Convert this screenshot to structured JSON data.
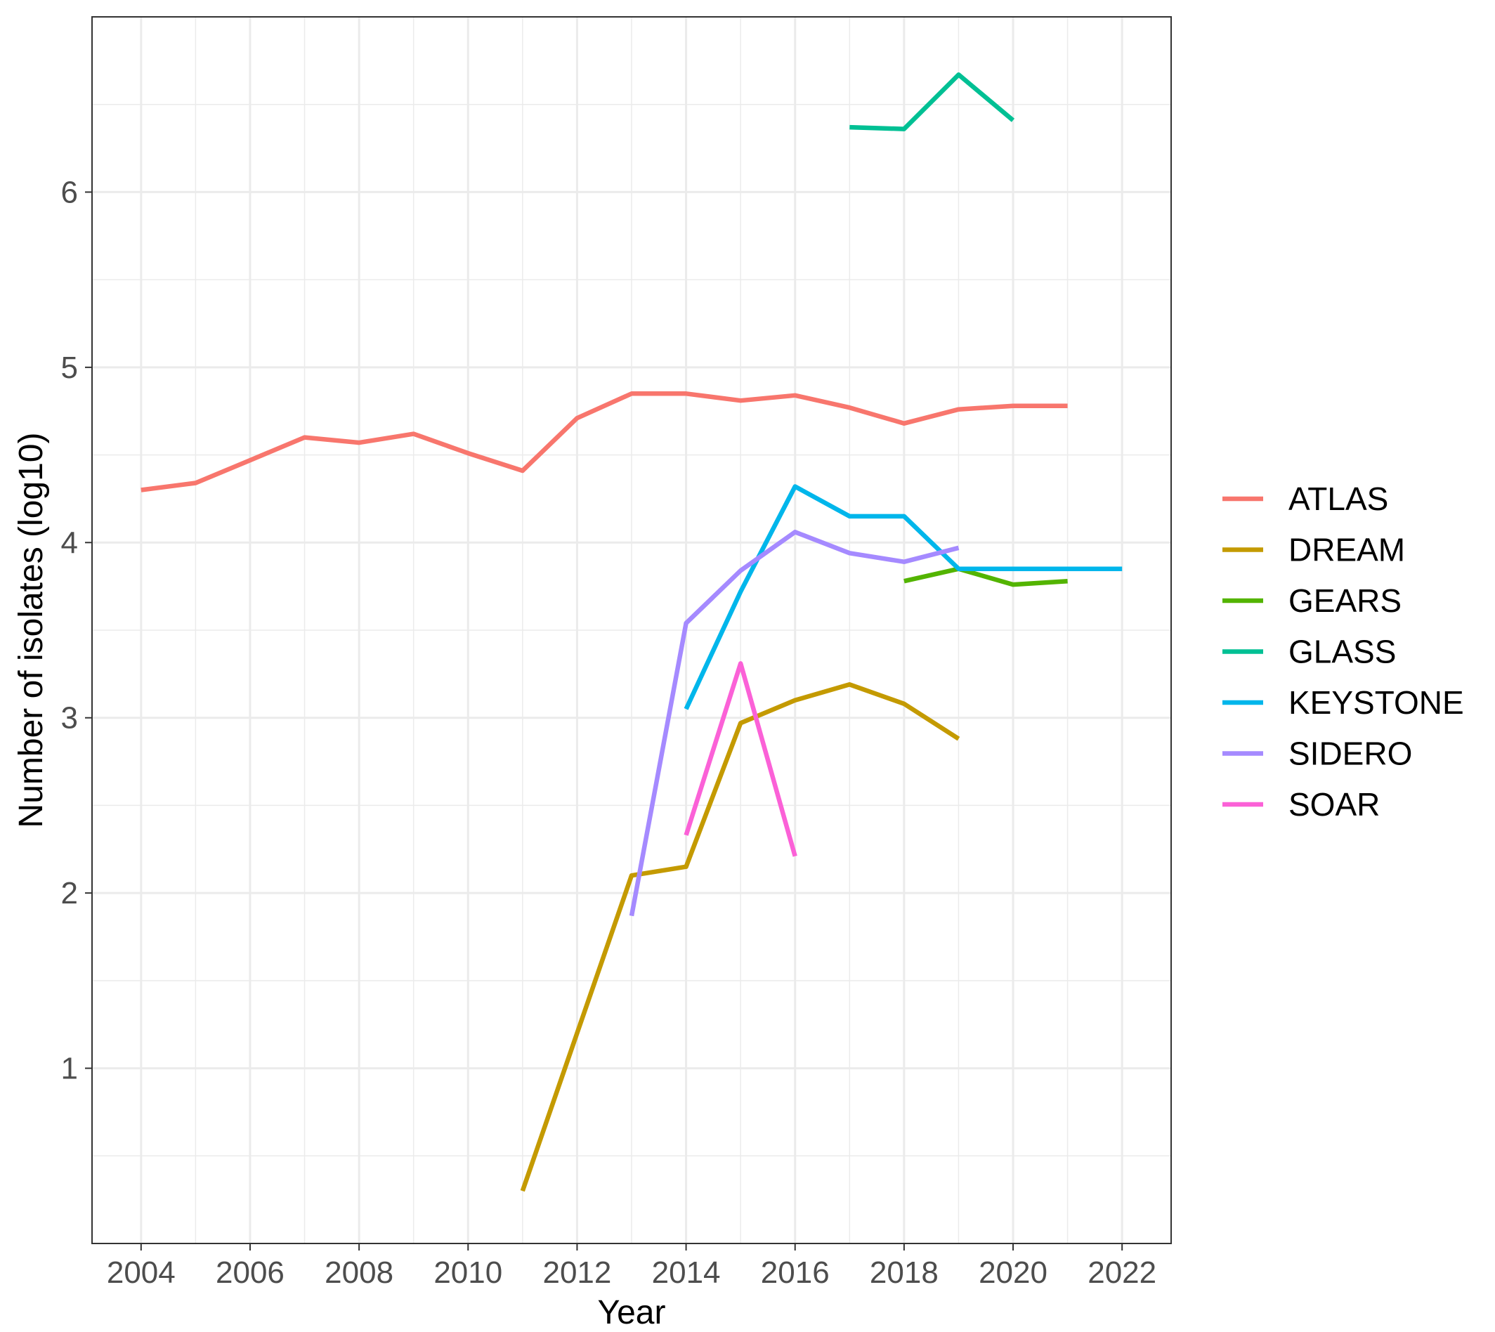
{
  "chart_data": {
    "type": "line",
    "title": "",
    "xlabel": "Year",
    "ylabel": "Number of isolates (log10)",
    "xlim": [
      2003.1,
      2022.9
    ],
    "ylim": [
      -0.0,
      7.0
    ],
    "x_ticks": [
      2004,
      2006,
      2008,
      2010,
      2012,
      2014,
      2016,
      2018,
      2020,
      2022
    ],
    "y_ticks": [
      1,
      2,
      3,
      4,
      5,
      6
    ],
    "grid": true,
    "legend_position": "right",
    "series": [
      {
        "name": "ATLAS",
        "color": "#F8766D",
        "points": [
          [
            2004,
            4.3
          ],
          [
            2005,
            4.34
          ],
          [
            2006,
            4.47
          ],
          [
            2007,
            4.6
          ],
          [
            2008,
            4.57
          ],
          [
            2009,
            4.62
          ],
          [
            2010,
            4.51
          ],
          [
            2011,
            4.41
          ],
          [
            2012,
            4.71
          ],
          [
            2013,
            4.85
          ],
          [
            2014,
            4.85
          ],
          [
            2015,
            4.81
          ],
          [
            2016,
            4.84
          ],
          [
            2017,
            4.77
          ],
          [
            2018,
            4.68
          ],
          [
            2019,
            4.76
          ],
          [
            2020,
            4.78
          ],
          [
            2021,
            4.78
          ]
        ]
      },
      {
        "name": "DREAM",
        "color": "#C49A00",
        "points": [
          [
            2011,
            0.3
          ],
          [
            2012,
            1.2
          ],
          [
            2013,
            2.1
          ],
          [
            2014,
            2.15
          ],
          [
            2015,
            2.97
          ],
          [
            2016,
            3.1
          ],
          [
            2017,
            3.19
          ],
          [
            2018,
            3.08
          ],
          [
            2019,
            2.88
          ]
        ]
      },
      {
        "name": "GEARS",
        "color": "#53B400",
        "points": [
          [
            2018,
            3.78
          ],
          [
            2019,
            3.85
          ],
          [
            2020,
            3.76
          ],
          [
            2021,
            3.78
          ]
        ]
      },
      {
        "name": "GLASS",
        "color": "#00C094",
        "points": [
          [
            2017,
            6.37
          ],
          [
            2018,
            6.36
          ],
          [
            2019,
            6.67
          ],
          [
            2020,
            6.41
          ]
        ]
      },
      {
        "name": "KEYSTONE",
        "color": "#00B6EB",
        "points": [
          [
            2014,
            3.05
          ],
          [
            2015,
            3.72
          ],
          [
            2016,
            4.32
          ],
          [
            2017,
            4.15
          ],
          [
            2018,
            4.15
          ],
          [
            2019,
            3.85
          ],
          [
            2020,
            3.85
          ],
          [
            2021,
            3.85
          ],
          [
            2022,
            3.85
          ]
        ]
      },
      {
        "name": "SIDERO",
        "color": "#A58AFF",
        "points": [
          [
            2013,
            1.87
          ],
          [
            2014,
            3.54
          ],
          [
            2015,
            3.84
          ],
          [
            2016,
            4.06
          ],
          [
            2017,
            3.94
          ],
          [
            2018,
            3.89
          ],
          [
            2019,
            3.97
          ]
        ]
      },
      {
        "name": "SOAR",
        "color": "#FB61D7",
        "points": [
          [
            2014,
            2.33
          ],
          [
            2015,
            3.31
          ],
          [
            2016,
            2.21
          ]
        ]
      }
    ]
  }
}
